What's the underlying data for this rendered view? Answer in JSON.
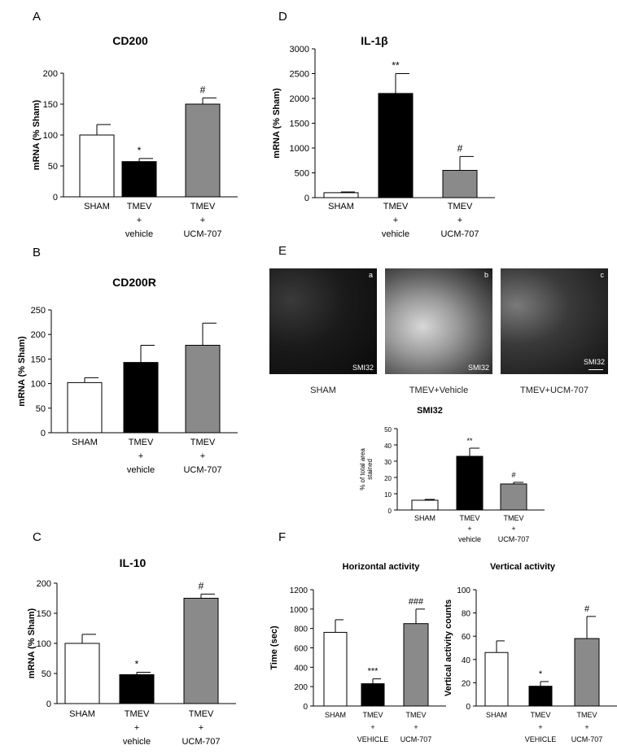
{
  "chart_data": [
    {
      "id": "A",
      "panel_label": "A",
      "type": "bar",
      "title": "CD200",
      "ylabel": "mRNA (% Sham)",
      "ylim": [
        0,
        200
      ],
      "yticks": [
        0,
        50,
        100,
        150,
        200
      ],
      "categories": [
        [
          "SHAM"
        ],
        [
          "TMEV",
          "+",
          "vehicle"
        ],
        [
          "TMEV",
          "+",
          "UCM-707"
        ]
      ],
      "values": [
        100,
        57,
        150
      ],
      "errors": [
        17,
        5,
        10
      ],
      "fills": [
        "#ffffff",
        "#000000",
        "#8a8a8a"
      ],
      "marks": [
        "",
        "*",
        "#"
      ]
    },
    {
      "id": "B",
      "panel_label": "B",
      "type": "bar",
      "title": "CD200R",
      "ylabel": "mRNA (% Sham)",
      "ylim": [
        0,
        250
      ],
      "yticks": [
        0,
        50,
        100,
        150,
        200,
        250
      ],
      "categories": [
        [
          "SHAM"
        ],
        [
          "TMEV",
          "+",
          "vehicle"
        ],
        [
          "TMEV",
          "+",
          "UCM-707"
        ]
      ],
      "values": [
        102,
        143,
        178
      ],
      "errors": [
        10,
        35,
        45
      ],
      "fills": [
        "#ffffff",
        "#000000",
        "#8a8a8a"
      ],
      "marks": [
        "",
        "",
        ""
      ]
    },
    {
      "id": "C",
      "panel_label": "C",
      "type": "bar",
      "title": "IL-10",
      "ylabel": "mRNA (% Sham)",
      "ylim": [
        0,
        200
      ],
      "yticks": [
        0,
        50,
        100,
        150,
        200
      ],
      "categories": [
        [
          "SHAM"
        ],
        [
          "TMEV",
          "+",
          "vehicle"
        ],
        [
          "TMEV",
          "+",
          "UCM-707"
        ]
      ],
      "values": [
        100,
        48,
        175
      ],
      "errors": [
        15,
        4,
        7
      ],
      "fills": [
        "#ffffff",
        "#000000",
        "#8a8a8a"
      ],
      "marks": [
        "",
        "*",
        "#"
      ]
    },
    {
      "id": "D",
      "panel_label": "D",
      "type": "bar",
      "title": "IL-1β",
      "ylabel": "mRNA (% Sham)",
      "ylim": [
        0,
        3000
      ],
      "yticks": [
        0,
        500,
        1000,
        1500,
        2000,
        2500,
        3000
      ],
      "categories": [
        [
          "SHAM"
        ],
        [
          "TMEV",
          "+",
          "vehicle"
        ],
        [
          "TMEV",
          "+",
          "UCM-707"
        ]
      ],
      "values": [
        100,
        2100,
        550
      ],
      "errors": [
        15,
        400,
        280
      ],
      "fills": [
        "#ffffff",
        "#000000",
        "#8a8a8a"
      ],
      "marks": [
        "",
        "**",
        "#"
      ]
    },
    {
      "id": "E",
      "panel_label": "",
      "type": "bar",
      "title": "SMI32",
      "ylabel": "% of total area stained",
      "ylim": [
        0,
        50
      ],
      "yticks": [
        0,
        10,
        20,
        30,
        40,
        50
      ],
      "categories": [
        [
          "SHAM"
        ],
        [
          "TMEV",
          "+",
          "vehicle"
        ],
        [
          "TMEV",
          "+",
          "UCM-707"
        ]
      ],
      "values": [
        6,
        33,
        16
      ],
      "errors": [
        0.5,
        5,
        1
      ],
      "fills": [
        "#ffffff",
        "#000000",
        "#8a8a8a"
      ],
      "marks": [
        "",
        "**",
        "#"
      ]
    },
    {
      "id": "F1",
      "panel_label": "F",
      "type": "bar",
      "title": "Horizontal activity",
      "ylabel": "Time (sec)",
      "ylim": [
        0,
        1200
      ],
      "yticks": [
        0,
        200,
        400,
        600,
        800,
        1000,
        1200
      ],
      "categories": [
        [
          "SHAM"
        ],
        [
          "TMEV",
          "+",
          "VEHICLE"
        ],
        [
          "TMEV",
          "+",
          "UCM-707"
        ]
      ],
      "values": [
        760,
        230,
        850
      ],
      "errors": [
        130,
        50,
        150
      ],
      "fills": [
        "#ffffff",
        "#000000",
        "#8a8a8a"
      ],
      "marks": [
        "",
        "***",
        "###"
      ]
    },
    {
      "id": "F2",
      "panel_label": "",
      "type": "bar",
      "title": "Vertical activity",
      "ylabel": "Vertical activity counts",
      "ylim": [
        0,
        100
      ],
      "yticks": [
        0,
        20,
        40,
        60,
        80,
        100
      ],
      "categories": [
        [
          "SHAM"
        ],
        [
          "TMEV",
          "+",
          "VEHICLE"
        ],
        [
          "TMEV",
          "+",
          "UCM-707"
        ]
      ],
      "values": [
        46,
        17,
        58
      ],
      "errors": [
        10,
        4,
        19
      ],
      "fills": [
        "#ffffff",
        "#000000",
        "#8a8a8a"
      ],
      "marks": [
        "",
        "*",
        "#"
      ]
    }
  ],
  "micrographs": {
    "panel_label": "E",
    "images": [
      {
        "letter": "a",
        "tag": "SMI32",
        "caption": "SHAM"
      },
      {
        "letter": "b",
        "tag": "SMI32",
        "caption": "TMEV+Vehicle"
      },
      {
        "letter": "c",
        "tag": "SMI32",
        "caption": "TMEV+UCM-707"
      }
    ]
  }
}
